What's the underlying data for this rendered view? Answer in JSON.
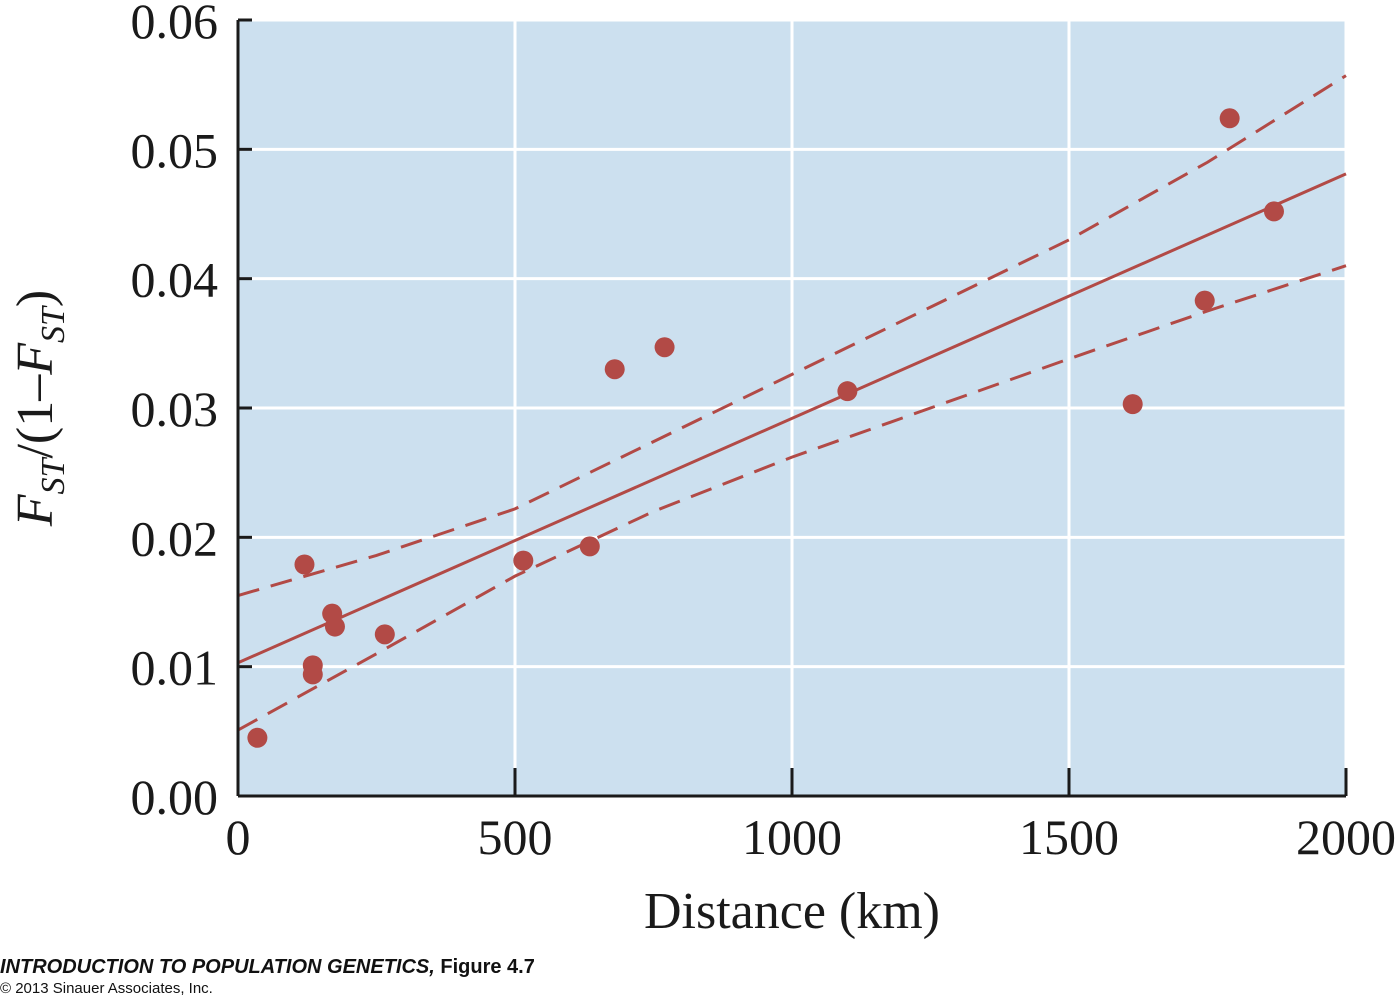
{
  "chart_data": {
    "type": "scatter",
    "xlabel": "Distance (km)",
    "ylabel": "F_ST/(1–F_ST)",
    "ylabel_parts": {
      "F": "F",
      "ST": "ST",
      "mid": "/(1–",
      "end": ")"
    },
    "xlim": [
      0,
      2000
    ],
    "ylim": [
      0,
      0.06
    ],
    "x_ticks": [
      0,
      500,
      1000,
      1500,
      2000
    ],
    "x_tick_labels": [
      "0",
      "500",
      "1000",
      "1500",
      "2000"
    ],
    "y_ticks": [
      0,
      0.01,
      0.02,
      0.03,
      0.04,
      0.05,
      0.06
    ],
    "y_tick_labels": [
      "0.00",
      "0.01",
      "0.02",
      "0.03",
      "0.04",
      "0.05",
      "0.06"
    ],
    "grid": true,
    "points": [
      {
        "x": 35,
        "y": 0.0045
      },
      {
        "x": 120,
        "y": 0.0179
      },
      {
        "x": 135,
        "y": 0.0101
      },
      {
        "x": 135,
        "y": 0.0094
      },
      {
        "x": 170,
        "y": 0.0141
      },
      {
        "x": 175,
        "y": 0.0131
      },
      {
        "x": 265,
        "y": 0.0125
      },
      {
        "x": 515,
        "y": 0.0182
      },
      {
        "x": 635,
        "y": 0.0193
      },
      {
        "x": 680,
        "y": 0.033
      },
      {
        "x": 770,
        "y": 0.0347
      },
      {
        "x": 1100,
        "y": 0.0313
      },
      {
        "x": 1615,
        "y": 0.0303
      },
      {
        "x": 1745,
        "y": 0.0383
      },
      {
        "x": 1790,
        "y": 0.0524
      },
      {
        "x": 1870,
        "y": 0.0452
      }
    ],
    "regression_line": {
      "x": [
        0,
        2000
      ],
      "y": [
        0.0103,
        0.0481
      ]
    },
    "confidence_upper": {
      "x": [
        0,
        250,
        500,
        750,
        1000,
        1250,
        1500,
        1750,
        2000
      ],
      "y": [
        0.0155,
        0.0186,
        0.0222,
        0.0274,
        0.0326,
        0.0378,
        0.043,
        0.049,
        0.0557
      ]
    },
    "confidence_lower": {
      "x": [
        0,
        250,
        500,
        750,
        1000,
        1250,
        1500,
        1750,
        2000
      ],
      "y": [
        0.0051,
        0.011,
        0.017,
        0.022,
        0.0262,
        0.03,
        0.0338,
        0.0375,
        0.041
      ]
    },
    "colors": {
      "background": "#cce0ef",
      "grid": "#ffffff",
      "marker": "#b24a46",
      "line": "#b24a46",
      "axis": "#1a1a1a"
    }
  },
  "caption": {
    "book": "INTRODUCTION TO POPULATION GENETICS,",
    "figure": " Figure 4.7",
    "copyright": "© 2013 Sinauer Associates, Inc."
  }
}
